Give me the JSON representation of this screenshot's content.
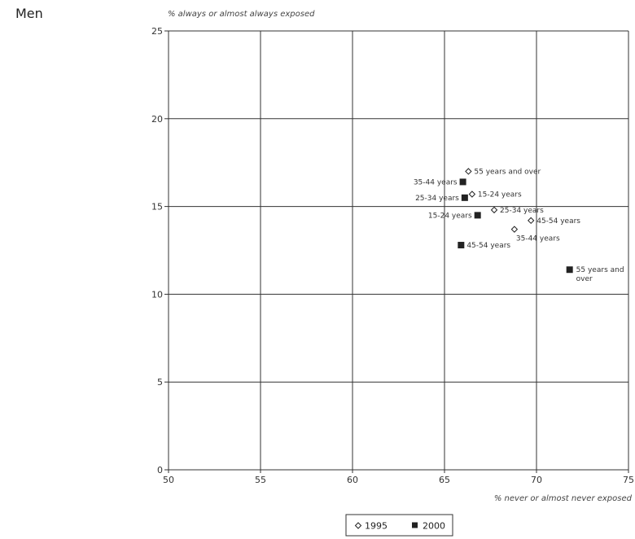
{
  "page": {
    "title": "Men"
  },
  "chart_data": {
    "type": "scatter",
    "title": "Men",
    "xlabel": "% never or almost never exposed",
    "ylabel": "% always or almost always exposed",
    "xlim": [
      50,
      75
    ],
    "ylim": [
      0,
      25
    ],
    "x_ticks": [
      50,
      55,
      60,
      65,
      70,
      75
    ],
    "y_ticks": [
      0,
      5,
      10,
      15,
      20,
      25
    ],
    "x_tick_labels": [
      "50",
      "55",
      "60",
      "65",
      "70",
      "75"
    ],
    "y_tick_labels": [
      "0",
      "5",
      "10",
      "15",
      "20",
      "25"
    ],
    "grid": true,
    "legend_position": "bottom-center",
    "series": [
      {
        "name": "1995",
        "marker": "open-diamond",
        "color": "#222222",
        "points": [
          {
            "label": "55 years and over",
            "label_side": "right",
            "x": 66.3,
            "y": 17.0
          },
          {
            "label": "15-24 years",
            "label_side": "right",
            "x": 66.5,
            "y": 15.7
          },
          {
            "label": "25-34 years",
            "label_side": "right",
            "x": 67.7,
            "y": 14.8
          },
          {
            "label": "45-54 years",
            "label_side": "right",
            "x": 69.7,
            "y": 14.2
          },
          {
            "label": "35-44 years",
            "label_side": "below-right",
            "x": 68.8,
            "y": 13.7
          }
        ]
      },
      {
        "name": "2000",
        "marker": "filled-square",
        "color": "#222222",
        "points": [
          {
            "label": "35-44 years",
            "label_side": "left",
            "x": 66.0,
            "y": 16.4
          },
          {
            "label": "25-34 years",
            "label_side": "left",
            "x": 66.1,
            "y": 15.5
          },
          {
            "label": "15-24 years",
            "label_side": "left",
            "x": 66.8,
            "y": 14.5
          },
          {
            "label": "45-54 years",
            "label_side": "right",
            "x": 65.9,
            "y": 12.8
          },
          {
            "label": "55 years and over",
            "label_side": "right-wrap",
            "label_lines": [
              "55 years and",
              "over"
            ],
            "x": 71.8,
            "y": 11.4
          }
        ]
      }
    ]
  }
}
